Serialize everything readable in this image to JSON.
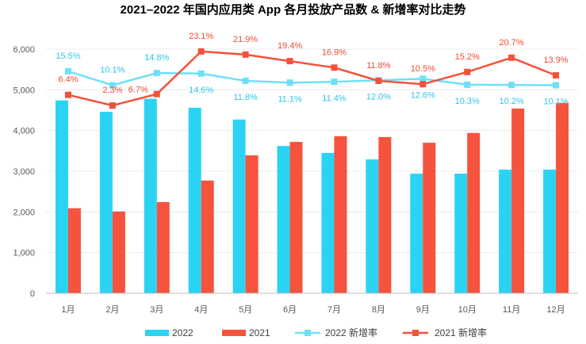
{
  "chart_data": {
    "type": "bar",
    "title": "2021–2022 年国内应用类 App 各月投放产品数 & 新增率对比走势",
    "xlabel": "",
    "ylabel": "",
    "categories": [
      "1月",
      "2月",
      "3月",
      "4月",
      "5月",
      "6月",
      "7月",
      "8月",
      "9月",
      "10月",
      "11月",
      "12月"
    ],
    "ylim": [
      0,
      6000
    ],
    "yticks": [
      0,
      1000,
      2000,
      3000,
      4000,
      5000,
      6000
    ],
    "ytick_labels": [
      "0",
      "1,000",
      "2,000",
      "3,000",
      "4,000",
      "5,000",
      "6,000"
    ],
    "y2lim": [
      -70,
      24
    ],
    "grid": true,
    "legend_position": "bottom",
    "series": [
      {
        "name": "2022",
        "type": "bar",
        "color": "#2bd3f3",
        "values": [
          4740,
          4460,
          4780,
          4560,
          4270,
          3620,
          3450,
          3290,
          2940,
          2940,
          3040,
          3040
        ]
      },
      {
        "name": "2021",
        "type": "bar",
        "color": "#f5533d",
        "values": [
          2090,
          2010,
          2240,
          2770,
          3390,
          3720,
          3860,
          3840,
          3700,
          3940,
          4540,
          4680
        ]
      },
      {
        "name": "2022 新增率",
        "type": "line",
        "unit": "%",
        "color": "#6ee0f7",
        "label_color": "#2ec6e8",
        "values": [
          15.5,
          10.1,
          14.8,
          14.6,
          11.8,
          11.1,
          11.4,
          12.0,
          12.6,
          10.3,
          10.2,
          10.1
        ]
      },
      {
        "name": "2021 新增率",
        "type": "line",
        "unit": "%",
        "color": "#f4513a",
        "label_color": "#ef4a33",
        "values": [
          6.4,
          2.3,
          6.7,
          23.1,
          21.9,
          19.4,
          16.9,
          11.8,
          10.5,
          15.2,
          20.7,
          13.9
        ]
      }
    ]
  }
}
